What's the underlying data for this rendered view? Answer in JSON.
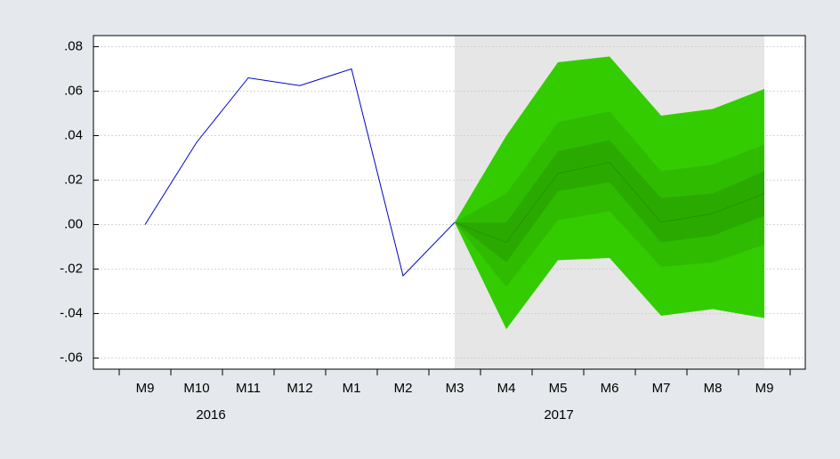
{
  "chart_data": {
    "type": "fan",
    "categories": [
      "M9",
      "M10",
      "M11",
      "M12",
      "M1",
      "M2",
      "M3",
      "M4",
      "M5",
      "M6",
      "M7",
      "M8",
      "M9"
    ],
    "year_labels": [
      "2016",
      "2017"
    ],
    "ylim": [
      -0.065,
      0.085
    ],
    "yticks": [
      {
        "value": 0.08,
        "label": ".08"
      },
      {
        "value": 0.06,
        "label": ".06"
      },
      {
        "value": 0.04,
        "label": ".04"
      },
      {
        "value": 0.02,
        "label": ".02"
      },
      {
        "value": 0,
        "label": ".00"
      },
      {
        "value": -0.02,
        "label": "-.02"
      },
      {
        "value": -0.04,
        "label": "-.04"
      },
      {
        "value": -0.06,
        "label": "-.06"
      }
    ],
    "grid": true,
    "forecast_shade_color": "#e6e6e6",
    "series": [
      {
        "color": "#0000cc",
        "values": [
          0.0,
          0.037,
          0.066,
          0.0625,
          0.07,
          -0.023,
          0.001,
          null,
          null,
          null,
          null,
          null,
          null
        ]
      }
    ],
    "bands": [
      {
        "color": "#33cc00",
        "upper": [
          null,
          null,
          null,
          null,
          null,
          null,
          0.001,
          0.04,
          0.073,
          0.0756,
          0.049,
          0.052,
          0.061
        ],
        "lower": [
          null,
          null,
          null,
          null,
          null,
          null,
          0.001,
          -0.047,
          -0.016,
          -0.015,
          -0.041,
          -0.038,
          -0.042
        ]
      },
      {
        "color": "#2fbc00",
        "upper": [
          null,
          null,
          null,
          null,
          null,
          null,
          0.001,
          0.014,
          0.046,
          0.051,
          0.024,
          0.027,
          0.036
        ],
        "lower": [
          null,
          null,
          null,
          null,
          null,
          null,
          0.001,
          -0.028,
          0.002,
          0.006,
          -0.019,
          -0.017,
          -0.009
        ]
      },
      {
        "color": "#2aaa00",
        "upper": [
          null,
          null,
          null,
          null,
          null,
          null,
          0.001,
          0.001,
          0.033,
          0.038,
          0.012,
          0.014,
          0.024
        ],
        "lower": [
          null,
          null,
          null,
          null,
          null,
          null,
          0.001,
          -0.017,
          0.015,
          0.019,
          -0.008,
          -0.005,
          0.004
        ]
      }
    ],
    "median": {
      "color": "#239400",
      "values": [
        null,
        null,
        null,
        null,
        null,
        null,
        0.001,
        -0.008,
        0.023,
        0.028,
        0.001,
        0.005,
        0.014
      ]
    }
  }
}
